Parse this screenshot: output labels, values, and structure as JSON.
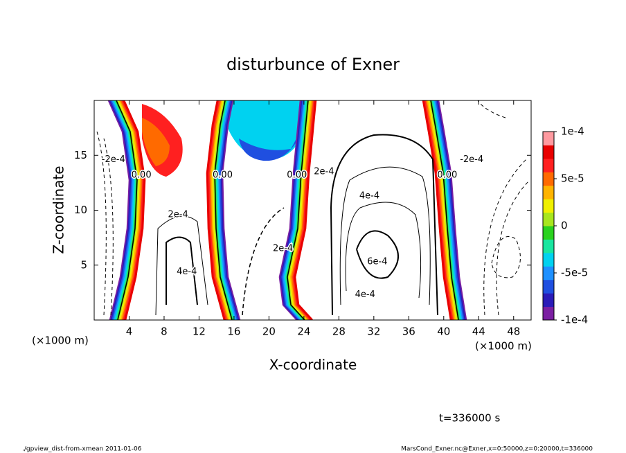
{
  "chart_data": {
    "type": "contour",
    "title": "disturbunce of Exner",
    "x_label": "X-coordinate",
    "y_label": "Z-coordinate",
    "x_unit": "(×1000 m)",
    "xlim": [
      0,
      50
    ],
    "ylim": [
      0,
      20
    ],
    "xticks": [
      4,
      8,
      12,
      16,
      20,
      24,
      28,
      32,
      36,
      40,
      44,
      48
    ],
    "yticks": [
      5,
      10,
      15
    ],
    "clim": [
      -0.0001,
      0.0001
    ],
    "cticks": [
      {
        "value": 0.0001,
        "label": "1e-4"
      },
      {
        "value": 5e-05,
        "label": "5e-5"
      },
      0,
      {
        "value": -5e-05,
        "label": "-5e-5"
      },
      {
        "value": -0.0001,
        "label": "-1e-4"
      }
    ],
    "colormap": [
      "#7b1fa2",
      "#2a1bb8",
      "#1f4fe0",
      "#1e90ff",
      "#00d2f0",
      "#19e6a0",
      "#2ad21e",
      "#a8e61e",
      "#f0f000",
      "#ffb400",
      "#ff6a00",
      "#ff2020",
      "#e80000",
      "#ff9aa0"
    ],
    "contour_labels": [
      {
        "label": "-2e-4",
        "x": 2.2,
        "y": 14.6
      },
      {
        "label": "0.00",
        "x": 5.4,
        "y": 13.2
      },
      {
        "label": "0.00",
        "x": 14.7,
        "y": 13.2
      },
      {
        "label": "0.00",
        "x": 23.2,
        "y": 13.2
      },
      {
        "label": "0.00",
        "x": 40.4,
        "y": 13.2
      },
      {
        "label": "-2e-4",
        "x": 43.2,
        "y": 14.6
      },
      {
        "label": "2e-4",
        "x": 9.6,
        "y": 9.6
      },
      {
        "label": "2e-4",
        "x": 26.3,
        "y": 13.5
      },
      {
        "label": "2e-4",
        "x": 21.6,
        "y": 6.5
      },
      {
        "label": "4e-4",
        "x": 31.5,
        "y": 11.3
      },
      {
        "label": "4e-4",
        "x": 10.6,
        "y": 4.4
      },
      {
        "label": "6e-4",
        "x": 32.4,
        "y": 5.3
      },
      {
        "label": "4e-4",
        "x": 31.0,
        "y": 2.3
      }
    ],
    "time_label": "t=336000 s",
    "footer_left": "./gpview_dist-from-xmean  2011-01-06",
    "footer_right": "MarsCond_Exner.nc@Exner,x=0:50000,z=0:20000,t=336000"
  }
}
